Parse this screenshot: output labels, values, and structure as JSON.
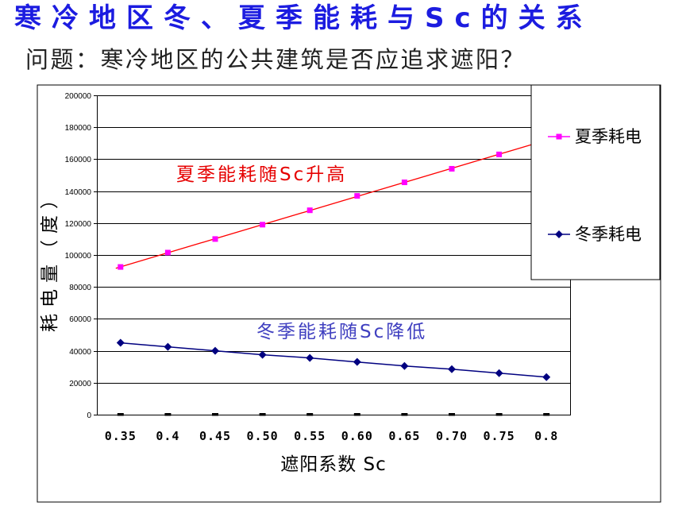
{
  "slide": {
    "title": "寒冷地区冬、夏季能耗与Sc的关系",
    "subtitle": "问题：寒冷地区的公共建筑是否应追求遮阳？",
    "title_color": "#1c1ce0",
    "subtitle_color": "#222222"
  },
  "chart_data": {
    "type": "line",
    "xlabel": "遮阳系数 Sc",
    "ylabel": "耗电量（度）",
    "categories": [
      "0.35",
      "0.4",
      "0.45",
      "0.50",
      "0.55",
      "0.60",
      "0.65",
      "0.70",
      "0.75",
      "0.8"
    ],
    "ylim": [
      0,
      200000
    ],
    "yticks": [
      0,
      20000,
      40000,
      60000,
      80000,
      100000,
      120000,
      140000,
      160000,
      180000,
      200000
    ],
    "grid": true,
    "legend": "right",
    "series": [
      {
        "name": "夏季耗电",
        "values": [
          92500,
          101500,
          110000,
          119000,
          128000,
          137000,
          145500,
          154000,
          163000,
          172000
        ],
        "marker": "square",
        "color": "#ff00ff",
        "line": false,
        "trendline_color": "#ff0000"
      },
      {
        "name": "冬季耗电",
        "values": [
          45000,
          42500,
          40000,
          37500,
          35500,
          33000,
          30500,
          28500,
          26000,
          23500
        ],
        "marker": "diamond",
        "color": "#000080",
        "line": true
      }
    ],
    "annotations": [
      {
        "text": "夏季能耗随Sc升高",
        "color": "#e60000"
      },
      {
        "text": "冬季能耗随Sc降低",
        "color": "#4040c0"
      }
    ]
  }
}
